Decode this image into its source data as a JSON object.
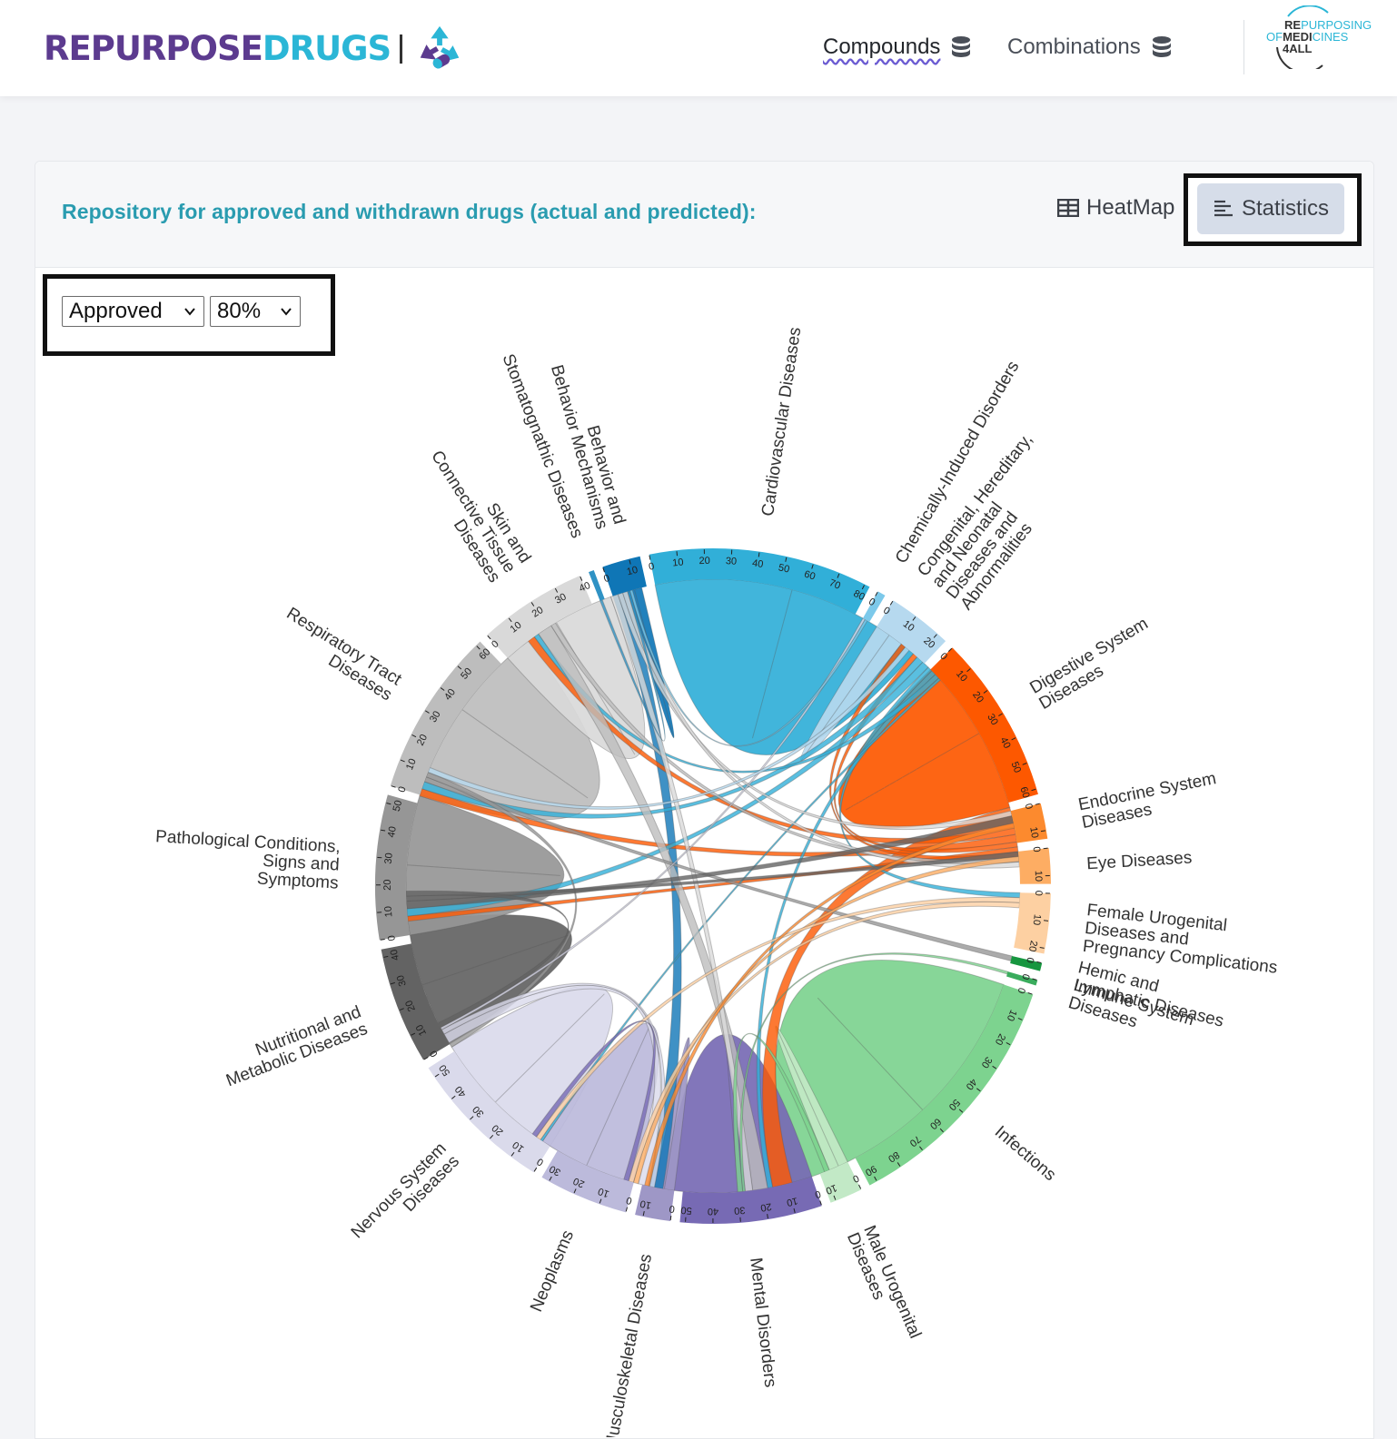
{
  "brand": {
    "part1": "REPURPOSE",
    "part2": "DRUGS",
    "logo_icon": "recycle-pill-icon"
  },
  "nav": [
    {
      "label": "Compounds",
      "icon": "database-icon",
      "active": true
    },
    {
      "label": "Combinations",
      "icon": "database-icon",
      "active": false
    }
  ],
  "partner_logo": {
    "line1a": "RE",
    "line1b": "PURPOSING",
    "line2a": "OF",
    "line2b": "MEDI",
    "line2c": "CINES",
    "line3": "4ALL"
  },
  "panel": {
    "title": "Repository for approved and withdrawn drugs (actual and predicted):",
    "heatmap_label": "HeatMap",
    "heatmap_icon": "table-icon",
    "statistics_label": "Statistics",
    "statistics_icon": "align-left-icon"
  },
  "filters": {
    "status_selected": "Approved",
    "threshold_selected": "80%"
  },
  "colors": {
    "brand_purple": "#5c3b8f",
    "brand_cyan": "#2bb6d6",
    "title_teal": "#2a9cb0",
    "active_button": "#d6dde9"
  },
  "chart_data": {
    "type": "chord",
    "groups": [
      {
        "name": "Cardiovascular Diseases",
        "lines": [
          "Cardiovascular Diseases"
        ],
        "value": 82,
        "color": "#31afd8",
        "ticks": [
          0,
          10,
          20,
          30,
          40,
          50,
          60,
          70,
          80
        ]
      },
      {
        "name": "Chemically-Induced Disorders",
        "lines": [
          "Chemically-Induced Disorders"
        ],
        "value": 3,
        "color": "#7cc9ea",
        "ticks": [
          0
        ]
      },
      {
        "name": "Congenital, Hereditary, and Neonatal Diseases and Abnormalities",
        "lines": [
          "Congenital, Hereditary,",
          "and Neonatal",
          "Diseases and",
          "Abnormalities"
        ],
        "value": 24,
        "color": "#b6d9ef",
        "ticks": [
          0,
          10,
          20
        ]
      },
      {
        "name": "Digestive System Diseases",
        "lines": [
          "Digestive System",
          "Diseases"
        ],
        "value": 62,
        "color": "#fd5800",
        "ticks": [
          0,
          10,
          20,
          30,
          40,
          50,
          60
        ]
      },
      {
        "name": "Endocrine System Diseases",
        "lines": [
          "Endocrine System",
          "Diseases"
        ],
        "value": 13,
        "color": "#fc8a2e",
        "ticks": [
          0,
          10
        ]
      },
      {
        "name": "Eye Diseases",
        "lines": [
          "Eye Diseases"
        ],
        "value": 13,
        "color": "#fdad63",
        "ticks": [
          0,
          10
        ]
      },
      {
        "name": "Female Urogenital Diseases and Pregnancy Complications",
        "lines": [
          "Female Urogenital",
          "Diseases and",
          "Pregnancy Complications"
        ],
        "value": 22,
        "color": "#fdd0a2",
        "ticks": [
          0,
          10,
          20
        ]
      },
      {
        "name": "Hemic and Lymphatic Diseases",
        "lines": [
          "Hemic and",
          "Lymphatic Diseases"
        ],
        "value": 3,
        "color": "#16963f",
        "ticks": [
          0
        ]
      },
      {
        "name": "Immune System Diseases",
        "lines": [
          "Immune System",
          "Diseases"
        ],
        "value": 2,
        "color": "#3aac5d",
        "ticks": [
          0
        ]
      },
      {
        "name": "Infections",
        "lines": [
          "Infections"
        ],
        "value": 93,
        "color": "#7dd38f",
        "ticks": [
          0,
          10,
          20,
          30,
          40,
          50,
          60,
          70,
          80,
          90
        ]
      },
      {
        "name": "Male Urogenital Diseases",
        "lines": [
          "Male Urogenital",
          "Diseases"
        ],
        "value": 12,
        "color": "#c2e9c6",
        "ticks": [
          0,
          10
        ]
      },
      {
        "name": "Mental Disorders",
        "lines": [
          "Mental Disorders"
        ],
        "value": 52,
        "color": "#776ab4",
        "ticks": [
          0,
          10,
          20,
          30,
          40,
          50
        ]
      },
      {
        "name": "Musculoskeletal Diseases",
        "lines": [
          "Musculoskeletal Diseases"
        ],
        "value": 13,
        "color": "#9e97c6",
        "ticks": [
          0,
          10
        ]
      },
      {
        "name": "Neoplasms",
        "lines": [
          "Neoplasms"
        ],
        "value": 33,
        "color": "#bcbadb",
        "ticks": [
          0,
          10,
          20,
          30
        ]
      },
      {
        "name": "Nervous System Diseases",
        "lines": [
          "Nervous System",
          "Diseases"
        ],
        "value": 54,
        "color": "#dadaeb",
        "ticks": [
          0,
          10,
          20,
          30,
          40,
          50
        ]
      },
      {
        "name": "Nutritional and Metabolic Diseases",
        "lines": [
          "Nutritional and",
          "Metabolic Diseases"
        ],
        "value": 43,
        "color": "#636363",
        "ticks": [
          0,
          10,
          20,
          30,
          40
        ]
      },
      {
        "name": "Pathological Conditions, Signs and Symptoms",
        "lines": [
          "Pathological Conditions,",
          "Signs and",
          "Symptoms"
        ],
        "value": 53,
        "color": "#969696",
        "ticks": [
          0,
          10,
          20,
          30,
          40,
          50
        ]
      },
      {
        "name": "Respiratory Tract Diseases",
        "lines": [
          "Respiratory Tract",
          "Diseases"
        ],
        "value": 62,
        "color": "#bdbdbd",
        "ticks": [
          0,
          10,
          20,
          30,
          40,
          50,
          60
        ]
      },
      {
        "name": "Skin and Connective Tissue Diseases",
        "lines": [
          "Skin and",
          "Connective Tissue",
          "Diseases"
        ],
        "value": 40,
        "color": "#d9d9d9",
        "ticks": [
          0,
          10,
          20,
          30,
          40
        ]
      },
      {
        "name": "Stomatognathic Diseases",
        "lines": [
          "Stomatognathic Diseases"
        ],
        "value": 2,
        "color": "#2f92c4",
        "ticks": []
      },
      {
        "name": "Behavior and Behavior Mechanisms",
        "lines": [
          "Behavior and",
          "Behavior Mechanisms"
        ],
        "value": 14,
        "color": "#0f76b6",
        "ticks": [
          0,
          10
        ]
      }
    ],
    "links": [
      {
        "source": "Cardiovascular Diseases",
        "target": "Cardiovascular Diseases",
        "value": 55
      },
      {
        "source": "Digestive System Diseases",
        "target": "Digestive System Diseases",
        "value": 32
      },
      {
        "source": "Infections",
        "target": "Infections",
        "value": 60
      },
      {
        "source": "Mental Disorders",
        "target": "Mental Disorders",
        "value": 30
      },
      {
        "source": "Nervous System Diseases",
        "target": "Nervous System Diseases",
        "value": 28
      },
      {
        "source": "Neoplasms",
        "target": "Neoplasms",
        "value": 20
      },
      {
        "source": "Nutritional and Metabolic Diseases",
        "target": "Nutritional and Metabolic Diseases",
        "value": 26
      },
      {
        "source": "Pathological Conditions, Signs and Symptoms",
        "target": "Pathological Conditions, Signs and Symptoms",
        "value": 28
      },
      {
        "source": "Respiratory Tract Diseases",
        "target": "Respiratory Tract Diseases",
        "value": 38
      },
      {
        "source": "Skin and Connective Tissue Diseases",
        "target": "Skin and Connective Tissue Diseases",
        "value": 24
      },
      {
        "source": "Congenital, Hereditary, and Neonatal Diseases and Abnormalities",
        "target": "Congenital, Hereditary, and Neonatal Diseases and Abnormalities",
        "value": 6
      },
      {
        "source": "Musculoskeletal Diseases",
        "target": "Musculoskeletal Diseases",
        "value": 4
      },
      {
        "source": "Male Urogenital Diseases",
        "target": "Male Urogenital Diseases",
        "value": 4
      },
      {
        "source": "Behavior and Behavior Mechanisms",
        "target": "Mental Disorders",
        "value": 6
      },
      {
        "source": "Behavior and Behavior Mechanisms",
        "target": "Behavior and Behavior Mechanisms",
        "value": 3
      },
      {
        "source": "Digestive System Diseases",
        "target": "Infections",
        "value": 8
      },
      {
        "source": "Digestive System Diseases",
        "target": "Respiratory Tract Diseases",
        "value": 3
      },
      {
        "source": "Digestive System Diseases",
        "target": "Pathological Conditions, Signs and Symptoms",
        "value": 3
      },
      {
        "source": "Digestive System Diseases",
        "target": "Cardiovascular Diseases",
        "value": 2
      },
      {
        "source": "Digestive System Diseases",
        "target": "Nutritional and Metabolic Diseases",
        "value": 2
      },
      {
        "source": "Digestive System Diseases",
        "target": "Congenital, Hereditary, and Neonatal Diseases and Abnormalities",
        "value": 2
      },
      {
        "source": "Cardiovascular Diseases",
        "target": "Pathological Conditions, Signs and Symptoms",
        "value": 3
      },
      {
        "source": "Cardiovascular Diseases",
        "target": "Nutritional and Metabolic Diseases",
        "value": 3
      },
      {
        "source": "Cardiovascular Diseases",
        "target": "Female Urogenital Diseases and Pregnancy Complications",
        "value": 2
      },
      {
        "source": "Cardiovascular Diseases",
        "target": "Infections",
        "value": 2
      },
      {
        "source": "Cardiovascular Diseases",
        "target": "Respiratory Tract Diseases",
        "value": 2
      },
      {
        "source": "Cardiovascular Diseases",
        "target": "Neoplasms",
        "value": 1
      },
      {
        "source": "Respiratory Tract Diseases",
        "target": "Infections",
        "value": 6
      },
      {
        "source": "Respiratory Tract Diseases",
        "target": "Digestive System Diseases",
        "value": 2
      },
      {
        "source": "Skin and Connective Tissue Diseases",
        "target": "Infections",
        "value": 3
      },
      {
        "source": "Skin and Connective Tissue Diseases",
        "target": "Endocrine System Diseases",
        "value": 2
      },
      {
        "source": "Skin and Connective Tissue Diseases",
        "target": "Digestive System Diseases",
        "value": 2
      },
      {
        "source": "Pathological Conditions, Signs and Symptoms",
        "target": "Hemic and Lymphatic Diseases",
        "value": 2
      },
      {
        "source": "Pathological Conditions, Signs and Symptoms",
        "target": "Nervous System Diseases",
        "value": 2
      },
      {
        "source": "Nervous System Diseases",
        "target": "Mental Disorders",
        "value": 4
      },
      {
        "source": "Nervous System Diseases",
        "target": "Musculoskeletal Diseases",
        "value": 2
      },
      {
        "source": "Nervous System Diseases",
        "target": "Chemically-Induced Disorders",
        "value": 1
      },
      {
        "source": "Nutritional and Metabolic Diseases",
        "target": "Endocrine System Diseases",
        "value": 3
      },
      {
        "source": "Nutritional and Metabolic Diseases",
        "target": "Eye Diseases",
        "value": 2
      },
      {
        "source": "Nutritional and Metabolic Diseases",
        "target": "Nervous System Diseases",
        "value": 2
      },
      {
        "source": "Infections",
        "target": "Immune System Diseases",
        "value": 1
      },
      {
        "source": "Infections",
        "target": "Male Urogenital Diseases",
        "value": 2
      },
      {
        "source": "Eye Diseases",
        "target": "Mental Disorders",
        "value": 2
      },
      {
        "source": "Female Urogenital Diseases and Pregnancy Complications",
        "target": "Neoplasms",
        "value": 2
      },
      {
        "source": "Female Urogenital Diseases and Pregnancy Complications",
        "target": "Mental Disorders",
        "value": 2
      },
      {
        "source": "Endocrine System Diseases",
        "target": "Musculoskeletal Diseases",
        "value": 2
      },
      {
        "source": "Stomatognathic Diseases",
        "target": "Skin and Connective Tissue Diseases",
        "value": 1
      },
      {
        "source": "Chemically-Induced Disorders",
        "target": "Skin and Connective Tissue Diseases",
        "value": 1
      },
      {
        "source": "Congenital, Hereditary, and Neonatal Diseases and Abnormalities",
        "target": "Pathological Conditions, Signs and Symptoms",
        "value": 2
      },
      {
        "source": "Mental Disorders",
        "target": "Neoplasms",
        "value": 2
      }
    ]
  }
}
